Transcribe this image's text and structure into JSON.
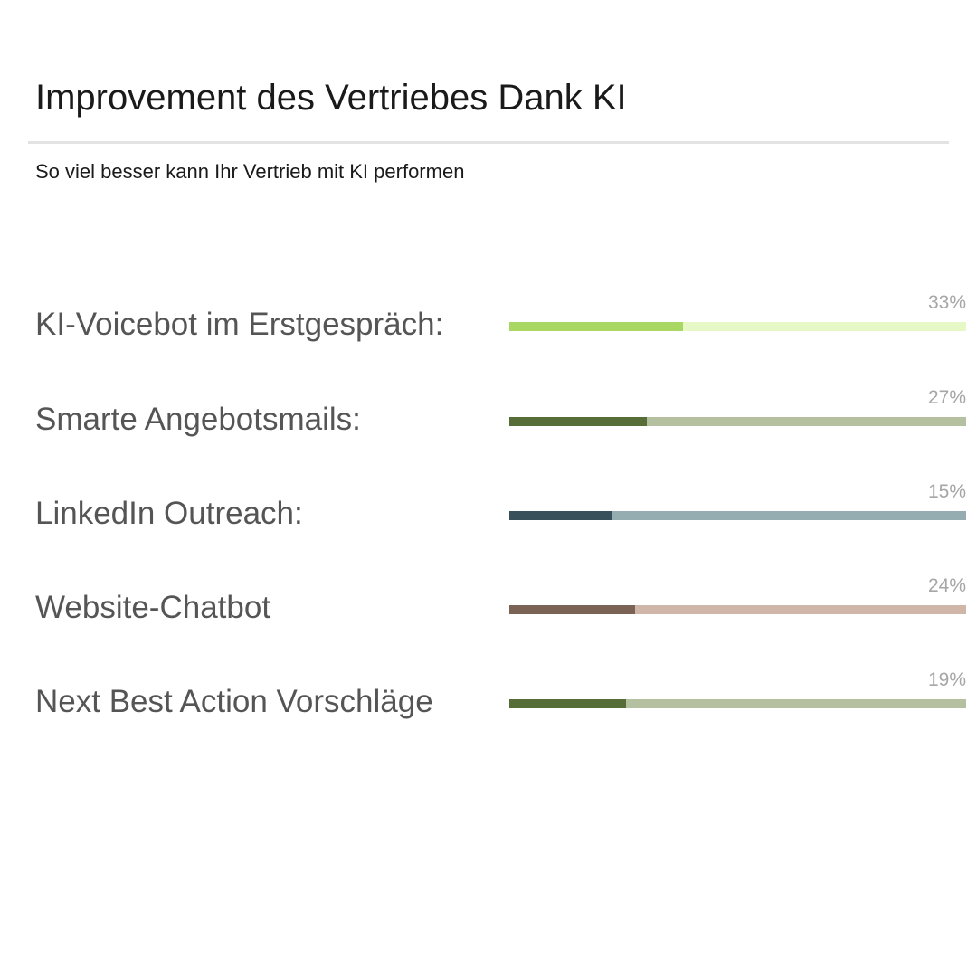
{
  "header": {
    "title": "Improvement des Vertriebes Dank KI",
    "subtitle": "So viel besser kann Ihr Vertrieb mit KI performen"
  },
  "chart_data": {
    "type": "bar",
    "title": "Improvement des Vertriebes Dank KI",
    "subtitle": "So viel besser kann Ihr Vertrieb mit KI performen",
    "orientation": "horizontal",
    "categories": [
      "KI-Voicebot im Erstgespräch:",
      "Smarte Angebotsmails:",
      "LinkedIn Outreach:",
      "Website-Chatbot",
      "Next Best Action Vorschläge"
    ],
    "values": [
      33,
      27,
      15,
      24,
      19
    ],
    "value_labels": [
      "33%",
      "27%",
      "15%",
      "24%",
      "19%"
    ],
    "fill_fractions": [
      0.38,
      0.3,
      0.225,
      0.275,
      0.255
    ],
    "colors": [
      {
        "fill": "#a8d863",
        "track": "#e6f8c6"
      },
      {
        "fill": "#566d38",
        "track": "#b4c0a0"
      },
      {
        "fill": "#37505a",
        "track": "#95adb1"
      },
      {
        "fill": "#7a6354",
        "track": "#cfb6a8"
      },
      {
        "fill": "#566d38",
        "track": "#b4c0a0"
      }
    ],
    "xlim": [
      0,
      100
    ],
    "grid": false,
    "legend": "none"
  }
}
